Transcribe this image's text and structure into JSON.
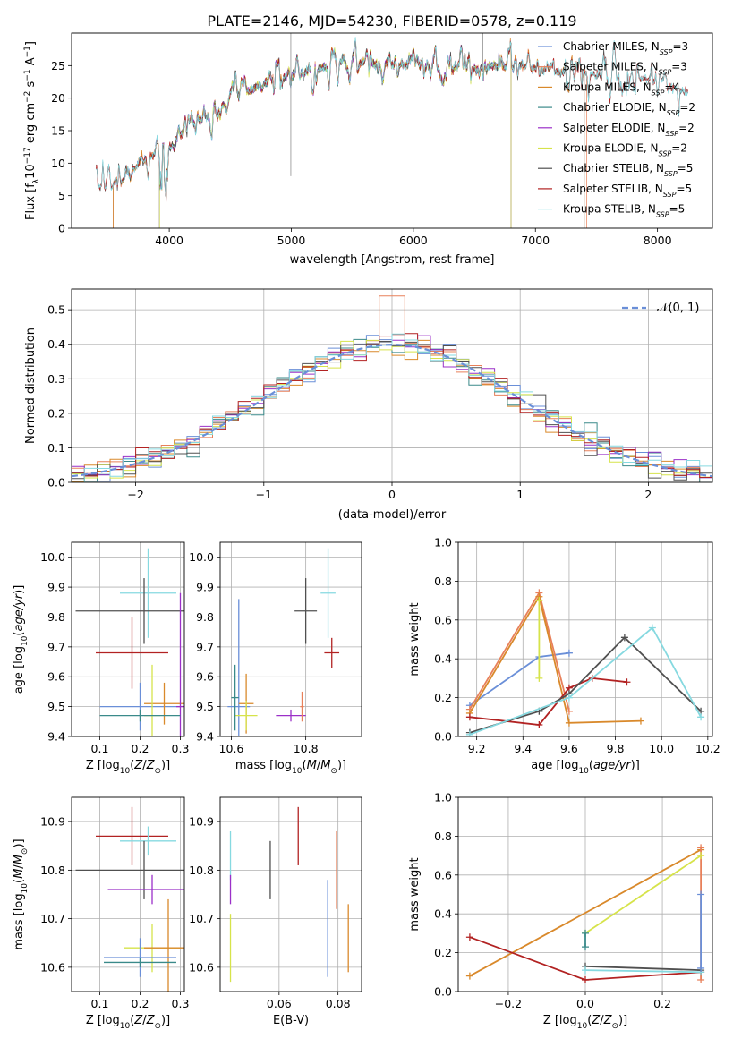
{
  "figure_title": "PLATE=2146, MJD=54230, FIBERID=0578, z=0.119",
  "colors": {
    "Chabrier MILES": "#6a8fd8",
    "Salpeter MILES": "#e8805a",
    "Kroupa MILES": "#d9892b",
    "Chabrier ELODIE": "#3a8a8a",
    "Salpeter ELODIE": "#9b30c8",
    "Kroupa ELODIE": "#d6e34a",
    "Chabrier STELIB": "#505050",
    "Salpeter STELIB": "#b22222",
    "Kroupa STELIB": "#86d9e0",
    "salpeter_miles_line": "#e07a3a",
    "kroupa_miles_line": "#d9892b",
    "kroupa_elodie_line": "#b8e06a",
    "gaussian": "#6a8fd8"
  },
  "chart_data": [
    {
      "type": "line",
      "title": "PLATE=2146, MJD=54230, FIBERID=0578, z=0.119",
      "xlabel": "wavelength [Angstrom, rest frame]",
      "ylabel": "Flux [f_λ10^-17 erg cm^-2 s^-1 A^-1]",
      "xlim": [
        3200,
        8450
      ],
      "ylim": [
        0,
        30
      ],
      "xticks": [
        "4000",
        "5000",
        "6000",
        "7000",
        "8000"
      ],
      "yticks": [
        "0",
        "5",
        "10",
        "15",
        "20",
        "25"
      ],
      "legend_position": "right",
      "legend": [
        "Chabrier MILES, N_SSP=3",
        "Salpeter MILES, N_SSP=3",
        "Kroupa MILES, N_SSP=4",
        "Chabrier ELODIE, N_SSP=2",
        "Salpeter ELODIE, N_SSP=2",
        "Kroupa ELODIE, N_SSP=2",
        "Chabrier STELIB, N_SSP=5",
        "Salpeter STELIB, N_SSP=5",
        "Kroupa STELIB, N_SSP=5"
      ],
      "continuum": {
        "x": [
          3400,
          3500,
          3600,
          3700,
          3800,
          3900,
          4000,
          4100,
          4200,
          4300,
          4400,
          4500,
          4600,
          4700,
          4800,
          4900,
          5000,
          5200,
          5400,
          5600,
          5800,
          6000,
          6200,
          6400,
          6600,
          6800,
          7000,
          7200,
          7400,
          7600,
          7800,
          8000,
          8200
        ],
        "y": [
          6.0,
          6.5,
          7.5,
          9.0,
          10.5,
          11.5,
          13.0,
          14.5,
          16.0,
          17.0,
          18.5,
          19.5,
          20.5,
          21.5,
          22.5,
          23.0,
          23.5,
          24.5,
          25.5,
          25.5,
          25.0,
          25.0,
          24.5,
          24.0,
          25.0,
          25.0,
          24.5,
          24.0,
          24.0,
          23.5,
          23.0,
          23.0,
          21.0
        ]
      }
    },
    {
      "type": "line",
      "xlabel": "(data-model)/error",
      "ylabel": "Normed distribution",
      "xlim": [
        -2.5,
        2.5
      ],
      "ylim": [
        0,
        0.56
      ],
      "xticks": [
        "−2",
        "−1",
        "0",
        "1",
        "2"
      ],
      "yticks": [
        "0.0",
        "0.1",
        "0.2",
        "0.3",
        "0.4",
        "0.5"
      ],
      "grid": true,
      "legend_position": "top-right",
      "legend": [
        "𝒩(0, 1)"
      ],
      "bin_width": 0.1,
      "histogram_peak": 0.54
    },
    {
      "type": "scatter",
      "xlabel": "Z [log10(Z/Z⊙)]",
      "ylabel": "age [log10(age/yr)]",
      "xlim": [
        0.03,
        0.31
      ],
      "ylim": [
        9.4,
        10.05
      ],
      "xticks": [
        "0.1",
        "0.2",
        "0.3"
      ],
      "yticks": [
        "9.4",
        "9.5",
        "9.6",
        "9.7",
        "9.8",
        "9.9",
        "10.0"
      ],
      "grid": true,
      "points": [
        {
          "model": "Kroupa STELIB",
          "x": 0.22,
          "y": 9.88,
          "xerr": 0.07,
          "yerr": 0.15
        },
        {
          "model": "Chabrier STELIB",
          "x": 0.21,
          "y": 9.82,
          "xerr": 0.17,
          "yerr": 0.11
        },
        {
          "model": "Salpeter STELIB",
          "x": 0.18,
          "y": 9.68,
          "xerr": 0.09,
          "yerr": 0.12
        },
        {
          "model": "Chabrier MILES",
          "x": 0.2,
          "y": 9.5,
          "xerr": 0.1,
          "yerr": 0.08
        },
        {
          "model": "Kroupa MILES",
          "x": 0.26,
          "y": 9.51,
          "xerr": 0.05,
          "yerr": 0.07
        },
        {
          "model": "Kroupa ELODIE",
          "x": 0.23,
          "y": 9.47,
          "xerr": 0.02,
          "yerr": 0.17
        },
        {
          "model": "Salpeter ELODIE",
          "x": 0.3,
          "y": 9.5,
          "xerr": 0.01,
          "yerr": 0.38
        },
        {
          "model": "Chabrier ELODIE",
          "x": 0.2,
          "y": 9.47,
          "xerr": 0.1,
          "yerr": 0.02
        }
      ]
    },
    {
      "type": "scatter",
      "xlabel": "mass [log10(M/M⊙)]",
      "ylabel": "",
      "xlim": [
        10.57,
        10.95
      ],
      "ylim": [
        9.4,
        10.05
      ],
      "xticks": [
        "10.6",
        "10.8"
      ],
      "yticks": [
        "9.4",
        "9.5",
        "9.6",
        "9.7",
        "9.8",
        "9.9",
        "10.0"
      ],
      "grid": true,
      "points": [
        {
          "model": "Kroupa STELIB",
          "x": 10.86,
          "y": 9.88,
          "xerr": 0.02,
          "yerr": 0.15
        },
        {
          "model": "Chabrier STELIB",
          "x": 10.8,
          "y": 9.82,
          "xerr": 0.03,
          "yerr": 0.11
        },
        {
          "model": "Salpeter STELIB",
          "x": 10.87,
          "y": 9.68,
          "xerr": 0.02,
          "yerr": 0.05
        },
        {
          "model": "Chabrier MILES",
          "x": 10.62,
          "y": 9.5,
          "xerr": 0.03,
          "yerr": 0.36
        },
        {
          "model": "Kroupa MILES",
          "x": 10.64,
          "y": 9.51,
          "xerr": 0.02,
          "yerr": 0.1
        },
        {
          "model": "Kroupa ELODIE",
          "x": 10.64,
          "y": 9.47,
          "xerr": 0.03,
          "yerr": 0.05
        },
        {
          "model": "Salpeter ELODIE",
          "x": 10.76,
          "y": 9.47,
          "xerr": 0.04,
          "yerr": 0.02
        },
        {
          "model": "Chabrier ELODIE",
          "x": 10.61,
          "y": 9.53,
          "xerr": 0.01,
          "yerr": 0.11
        },
        {
          "model": "Salpeter MILES",
          "x": 10.79,
          "y": 9.5,
          "xerr": 0.005,
          "yerr": 0.05
        }
      ]
    },
    {
      "type": "line",
      "xlabel": "age [log10(age/yr)]",
      "ylabel": "mass weight",
      "xlim": [
        9.12,
        10.22
      ],
      "ylim": [
        0,
        1.0
      ],
      "xticks": [
        "9.2",
        "9.4",
        "9.6",
        "9.8",
        "10.0",
        "10.2"
      ],
      "yticks": [
        "0.0",
        "0.2",
        "0.4",
        "0.6",
        "0.8",
        "1.0"
      ],
      "grid": true,
      "series": [
        {
          "model": "Chabrier MILES",
          "x": [
            9.17,
            9.47,
            9.6
          ],
          "y": [
            0.16,
            0.41,
            0.43
          ]
        },
        {
          "model": "Salpeter MILES",
          "x": [
            9.17,
            9.47,
            9.6
          ],
          "y": [
            0.14,
            0.74,
            0.13
          ]
        },
        {
          "model": "Kroupa MILES",
          "x": [
            9.17,
            9.47,
            9.6,
            9.91
          ],
          "y": [
            0.12,
            0.72,
            0.07,
            0.08
          ]
        },
        {
          "model": "Kroupa ELODIE",
          "x": [
            9.47,
            9.47
          ],
          "y": [
            0.3,
            0.7
          ]
        },
        {
          "model": "Salpeter STELIB",
          "x": [
            9.17,
            9.47,
            9.6,
            9.7,
            9.85
          ],
          "y": [
            0.1,
            0.06,
            0.25,
            0.3,
            0.28
          ]
        },
        {
          "model": "Chabrier STELIB",
          "x": [
            9.17,
            9.47,
            9.6,
            9.84,
            10.17
          ],
          "y": [
            0.02,
            0.13,
            0.22,
            0.51,
            0.13
          ]
        },
        {
          "model": "Kroupa STELIB",
          "x": [
            9.17,
            9.6,
            9.96,
            10.17
          ],
          "y": [
            0.01,
            0.2,
            0.56,
            0.1
          ]
        }
      ]
    },
    {
      "type": "scatter",
      "xlabel": "Z [log10(Z/Z⊙)]",
      "ylabel": "mass [log10(M/M⊙)]",
      "xlim": [
        0.03,
        0.31
      ],
      "ylim": [
        10.55,
        10.95
      ],
      "xticks": [
        "0.1",
        "0.2",
        "0.3"
      ],
      "yticks": [
        "10.6",
        "10.7",
        "10.8",
        "10.9"
      ],
      "grid": true,
      "points": [
        {
          "model": "Salpeter STELIB",
          "x": 0.18,
          "y": 10.87,
          "xerr": 0.09,
          "yerr": 0.06
        },
        {
          "model": "Kroupa STELIB",
          "x": 0.22,
          "y": 10.86,
          "xerr": 0.07,
          "yerr": 0.03
        },
        {
          "model": "Chabrier STELIB",
          "x": 0.21,
          "y": 10.8,
          "xerr": 0.17,
          "yerr": 0.06
        },
        {
          "model": "Salpeter ELODIE",
          "x": 0.23,
          "y": 10.76,
          "xerr": 0.11,
          "yerr": 0.03
        },
        {
          "model": "Kroupa ELODIE",
          "x": 0.23,
          "y": 10.64,
          "xerr": 0.07,
          "yerr": 0.05
        },
        {
          "model": "Kroupa MILES",
          "x": 0.27,
          "y": 10.64,
          "xerr": 0.06,
          "yerr": 0.1
        },
        {
          "model": "Chabrier MILES",
          "x": 0.2,
          "y": 10.62,
          "xerr": 0.09,
          "yerr": 0.04
        },
        {
          "model": "Chabrier ELODIE",
          "x": 0.2,
          "y": 10.61,
          "xerr": 0.09,
          "yerr": 0.01
        }
      ]
    },
    {
      "type": "scatter",
      "xlabel": "E(B-V)",
      "ylabel": "",
      "xlim": [
        0.04,
        0.088
      ],
      "ylim": [
        10.55,
        10.95
      ],
      "xticks": [
        "0.06",
        "0.08"
      ],
      "yticks": [
        "10.6",
        "10.7",
        "10.8",
        "10.9"
      ],
      "grid": true,
      "points": [
        {
          "model": "Kroupa STELIB",
          "x": 0.0435,
          "y": 10.83,
          "xerr": 0,
          "yerr": 0.05
        },
        {
          "model": "Salpeter ELODIE",
          "x": 0.0435,
          "y": 10.76,
          "xerr": 0,
          "yerr": 0.03
        },
        {
          "model": "Kroupa ELODIE",
          "x": 0.0435,
          "y": 10.64,
          "xerr": 0,
          "yerr": 0.07
        },
        {
          "model": "Chabrier STELIB",
          "x": 0.057,
          "y": 10.8,
          "xerr": 0,
          "yerr": 0.06
        },
        {
          "model": "Salpeter STELIB",
          "x": 0.0665,
          "y": 10.87,
          "xerr": 0,
          "yerr": 0.06
        },
        {
          "model": "Chabrier MILES",
          "x": 0.0765,
          "y": 10.68,
          "xerr": 0,
          "yerr": 0.1
        },
        {
          "model": "Salpeter MILES",
          "x": 0.0795,
          "y": 10.8,
          "xerr": 0,
          "yerr": 0.08
        },
        {
          "model": "Kroupa MILES",
          "x": 0.0835,
          "y": 10.66,
          "xerr": 0,
          "yerr": 0.07
        }
      ]
    },
    {
      "type": "line",
      "xlabel": "Z [log10(Z/Z⊙)]",
      "ylabel": "mass weight",
      "xlim": [
        -0.33,
        0.33
      ],
      "ylim": [
        0,
        1.0
      ],
      "xticks": [
        "−0.2",
        "0.0",
        "0.2"
      ],
      "yticks": [
        "0.0",
        "0.2",
        "0.4",
        "0.6",
        "0.8",
        "1.0"
      ],
      "grid": true,
      "series": [
        {
          "model": "Kroupa MILES",
          "x": [
            -0.3,
            0.3
          ],
          "y": [
            0.08,
            0.73
          ]
        },
        {
          "model": "Salpeter MILES",
          "x": [
            0.3,
            0.3
          ],
          "y": [
            0.06,
            0.74
          ]
        },
        {
          "model": "Kroupa ELODIE",
          "x": [
            0.0,
            0.3
          ],
          "y": [
            0.3,
            0.7
          ]
        },
        {
          "model": "Salpeter STELIB",
          "x": [
            -0.3,
            0.0,
            0.3
          ],
          "y": [
            0.28,
            0.06,
            0.1
          ]
        },
        {
          "model": "Chabrier STELIB",
          "x": [
            0.0,
            0.3
          ],
          "y": [
            0.13,
            0.11
          ]
        },
        {
          "model": "Kroupa STELIB",
          "x": [
            0.0,
            0.3
          ],
          "y": [
            0.11,
            0.1
          ]
        },
        {
          "model": "Chabrier MILES",
          "x": [
            0.3,
            0.3
          ],
          "y": [
            0.12,
            0.5
          ]
        },
        {
          "model": "Chabrier ELODIE",
          "x": [
            0.0,
            0.0
          ],
          "y": [
            0.23,
            0.3
          ]
        }
      ]
    }
  ]
}
